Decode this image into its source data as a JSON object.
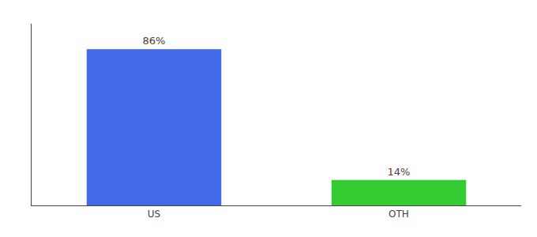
{
  "chart_data": {
    "type": "bar",
    "categories": [
      "US",
      "OTH"
    ],
    "values": [
      86,
      14
    ],
    "value_labels": [
      "86%",
      "14%"
    ],
    "colors": [
      "#4169e8",
      "#33cc33"
    ],
    "data_labels": true,
    "ylim": [
      0,
      100
    ],
    "tick_labels": "x",
    "grid": false
  }
}
